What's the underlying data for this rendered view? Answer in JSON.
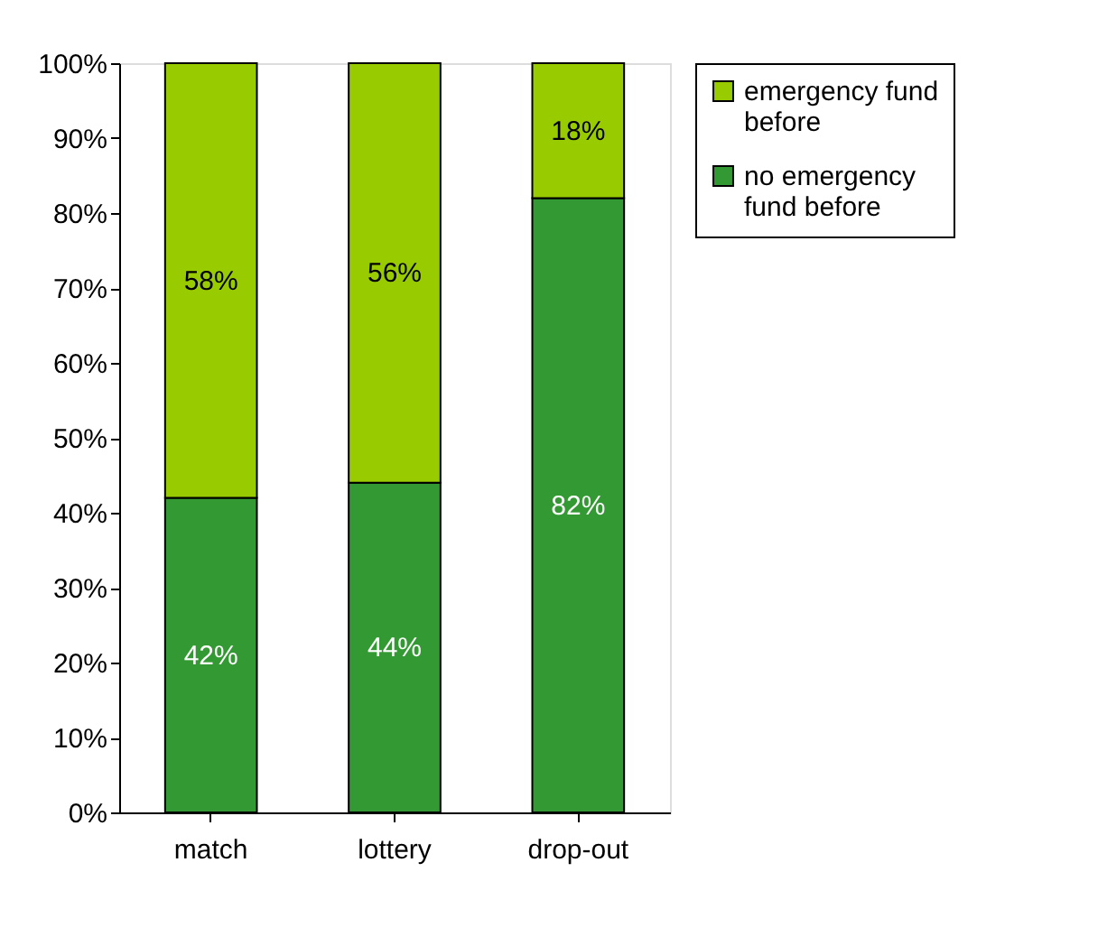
{
  "chart_data": {
    "type": "bar",
    "stacked": true,
    "categories": [
      "match",
      "lottery",
      "drop-out"
    ],
    "series": [
      {
        "name": "no emergency fund before",
        "color": "#339933",
        "values": [
          42,
          44,
          82
        ],
        "value_labels": [
          "42%",
          "44%",
          "82%"
        ]
      },
      {
        "name": "emergency fund before",
        "color": "#99cc00",
        "values": [
          58,
          56,
          18
        ],
        "value_labels": [
          "58%",
          "56%",
          "18%"
        ]
      }
    ],
    "ylim": [
      0,
      100
    ],
    "yticks": [
      {
        "value": 0,
        "label": "0%"
      },
      {
        "value": 10,
        "label": "10%"
      },
      {
        "value": 20,
        "label": "20%"
      },
      {
        "value": 30,
        "label": "30%"
      },
      {
        "value": 40,
        "label": "40%"
      },
      {
        "value": 50,
        "label": "50%"
      },
      {
        "value": 60,
        "label": "60%"
      },
      {
        "value": 70,
        "label": "70%"
      },
      {
        "value": 80,
        "label": "80%"
      },
      {
        "value": 90,
        "label": "90%"
      },
      {
        "value": 100,
        "label": "100%"
      }
    ],
    "legend": "right",
    "grid": false
  }
}
